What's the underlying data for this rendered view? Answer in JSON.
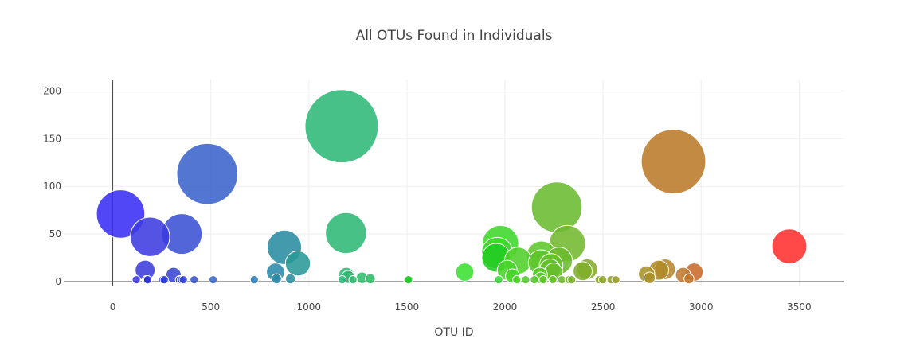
{
  "chart_data": {
    "type": "scatter",
    "title": "All OTUs Found in Individuals",
    "xlabel": "OTU ID",
    "ylabel": "",
    "xlim": [
      -250,
      3730
    ],
    "ylim": [
      -5,
      212
    ],
    "x_ticks": [
      0,
      500,
      1000,
      1500,
      2000,
      2500,
      3000,
      3500
    ],
    "y_ticks": [
      0,
      50,
      100,
      150,
      200
    ],
    "grid": true,
    "legend": "none",
    "marker_size_encoding": "sample_values",
    "points": [
      {
        "x": 40,
        "y": 71,
        "color": "#3a2df5"
      },
      {
        "x": 190,
        "y": 47,
        "color": "#3c3be0"
      },
      {
        "x": 352,
        "y": 50,
        "color": "#3a50d4"
      },
      {
        "x": 482,
        "y": 113,
        "color": "#3a63cc"
      },
      {
        "x": 165,
        "y": 12,
        "color": "#3b3bdc"
      },
      {
        "x": 310,
        "y": 7,
        "color": "#3a45d4"
      },
      {
        "x": 120,
        "y": 2,
        "color": "#3a35e0"
      },
      {
        "x": 170,
        "y": 2,
        "color": "#3a3ae0"
      },
      {
        "x": 178,
        "y": 2,
        "color": "#2a2add"
      },
      {
        "x": 255,
        "y": 2,
        "color": "#2a3ad8"
      },
      {
        "x": 263,
        "y": 2,
        "color": "#2a3ad8"
      },
      {
        "x": 340,
        "y": 2,
        "color": "#2a40d4"
      },
      {
        "x": 350,
        "y": 2,
        "color": "#1f2fcf"
      },
      {
        "x": 360,
        "y": 2,
        "color": "#3a48d0"
      },
      {
        "x": 415,
        "y": 2,
        "color": "#3a55cc"
      },
      {
        "x": 512,
        "y": 2,
        "color": "#3a66c8"
      },
      {
        "x": 722,
        "y": 2,
        "color": "#2f7db8"
      },
      {
        "x": 830,
        "y": 10,
        "color": "#2a8aa8"
      },
      {
        "x": 835,
        "y": 3,
        "color": "#2a8aa8"
      },
      {
        "x": 875,
        "y": 36,
        "color": "#2a8ca2"
      },
      {
        "x": 906,
        "y": 3,
        "color": "#2a90a0"
      },
      {
        "x": 944,
        "y": 19,
        "color": "#2a9898"
      },
      {
        "x": 1167,
        "y": 163,
        "color": "#2fb878"
      },
      {
        "x": 1189,
        "y": 51,
        "color": "#2fb876"
      },
      {
        "x": 1191,
        "y": 7,
        "color": "#2fb874"
      },
      {
        "x": 1200,
        "y": 5,
        "color": "#2fb872"
      },
      {
        "x": 1170,
        "y": 2,
        "color": "#2fb878"
      },
      {
        "x": 1225,
        "y": 2,
        "color": "#2fba70"
      },
      {
        "x": 1271,
        "y": 4,
        "color": "#2fbc6c"
      },
      {
        "x": 1313,
        "y": 3,
        "color": "#2fbc68"
      },
      {
        "x": 1503,
        "y": 2,
        "color": "#2fc850"
      },
      {
        "x": 1508,
        "y": 2,
        "color": "#22cc22"
      },
      {
        "x": 1795,
        "y": 10,
        "color": "#3ae030"
      },
      {
        "x": 1977,
        "y": 40,
        "color": "#3ed62a"
      },
      {
        "x": 1960,
        "y": 30,
        "color": "#3ed82a"
      },
      {
        "x": 1955,
        "y": 25,
        "color": "#22cc22"
      },
      {
        "x": 1968,
        "y": 2,
        "color": "#30d530"
      },
      {
        "x": 2011,
        "y": 12,
        "color": "#48d42a"
      },
      {
        "x": 2038,
        "y": 6,
        "color": "#48d42a"
      },
      {
        "x": 2066,
        "y": 22,
        "color": "#4ed02a"
      },
      {
        "x": 2060,
        "y": 2,
        "color": "#48d42a"
      },
      {
        "x": 2105,
        "y": 2,
        "color": "#50cc2a"
      },
      {
        "x": 2150,
        "y": 2,
        "color": "#55c82a"
      },
      {
        "x": 2178,
        "y": 7,
        "color": "#5ac82a"
      },
      {
        "x": 2182,
        "y": 4,
        "color": "#5ac82a"
      },
      {
        "x": 2186,
        "y": 27,
        "color": "#5cc62a"
      },
      {
        "x": 2184,
        "y": 20,
        "color": "#5cc52a"
      },
      {
        "x": 2195,
        "y": 2,
        "color": "#5cc52a"
      },
      {
        "x": 2230,
        "y": 13,
        "color": "#62c22a"
      },
      {
        "x": 2235,
        "y": 17,
        "color": "#62c02a"
      },
      {
        "x": 2244,
        "y": 2,
        "color": "#64be2a"
      },
      {
        "x": 2247,
        "y": 10,
        "color": "#66be2a"
      },
      {
        "x": 2264,
        "y": 78,
        "color": "#6abc30"
      },
      {
        "x": 2275,
        "y": 22,
        "color": "#6aba2a"
      },
      {
        "x": 2290,
        "y": 2,
        "color": "#6cba2a"
      },
      {
        "x": 2318,
        "y": 40,
        "color": "#72b830"
      },
      {
        "x": 2326,
        "y": 2,
        "color": "#74b42a"
      },
      {
        "x": 2340,
        "y": 2,
        "color": "#76b22a"
      },
      {
        "x": 2396,
        "y": 11,
        "color": "#80ae2a"
      },
      {
        "x": 2419,
        "y": 13,
        "color": "#84ab2a"
      },
      {
        "x": 2480,
        "y": 2,
        "color": "#8aa62a"
      },
      {
        "x": 2498,
        "y": 2,
        "color": "#8ca42a"
      },
      {
        "x": 2541,
        "y": 2,
        "color": "#95a02a"
      },
      {
        "x": 2565,
        "y": 2,
        "color": "#9a9c2a"
      },
      {
        "x": 2722,
        "y": 8,
        "color": "#a8922a"
      },
      {
        "x": 2737,
        "y": 4,
        "color": "#aa902a"
      },
      {
        "x": 2784,
        "y": 12,
        "color": "#b08a2a"
      },
      {
        "x": 2816,
        "y": 13,
        "color": "#b4862a"
      },
      {
        "x": 2859,
        "y": 126,
        "color": "#ba7a28"
      },
      {
        "x": 2908,
        "y": 7,
        "color": "#c07a30"
      },
      {
        "x": 2938,
        "y": 3,
        "color": "#c4762c"
      },
      {
        "x": 2964,
        "y": 10,
        "color": "#c86a2a"
      },
      {
        "x": 3450,
        "y": 37,
        "color": "#ff3030"
      }
    ]
  }
}
